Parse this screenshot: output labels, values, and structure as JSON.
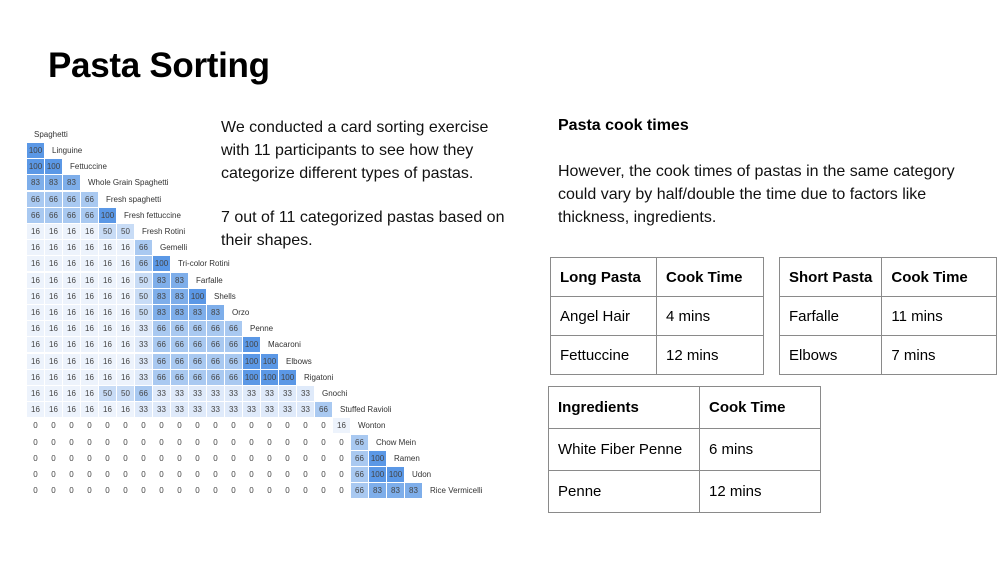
{
  "page": {
    "title": "Pasta Sorting",
    "intro_text": "We conducted a card sorting exercise with 11 participants to see how they categorize different types of pastas.",
    "finding_text": "7 out of 11 categorized pastas based on their shapes."
  },
  "similarity_matrix": {
    "top_label": "Spaghetti",
    "rows": [
      {
        "name": "Linguine",
        "values": [
          100
        ]
      },
      {
        "name": "Fettuccine",
        "values": [
          100,
          100
        ]
      },
      {
        "name": "Whole Grain Spaghetti",
        "values": [
          83,
          83,
          83
        ]
      },
      {
        "name": "Fresh spaghetti",
        "values": [
          66,
          66,
          66,
          66
        ]
      },
      {
        "name": "Fresh fettuccine",
        "values": [
          66,
          66,
          66,
          66,
          100
        ]
      },
      {
        "name": "Fresh Rotini",
        "values": [
          16,
          16,
          16,
          16,
          50,
          50
        ]
      },
      {
        "name": "Gemelli",
        "values": [
          16,
          16,
          16,
          16,
          16,
          16,
          66
        ]
      },
      {
        "name": "Tri-color Rotini",
        "values": [
          16,
          16,
          16,
          16,
          16,
          16,
          66,
          100
        ]
      },
      {
        "name": "Farfalle",
        "values": [
          16,
          16,
          16,
          16,
          16,
          16,
          50,
          83,
          83
        ]
      },
      {
        "name": "Shells",
        "values": [
          16,
          16,
          16,
          16,
          16,
          16,
          50,
          83,
          83,
          100
        ]
      },
      {
        "name": "Orzo",
        "values": [
          16,
          16,
          16,
          16,
          16,
          16,
          50,
          83,
          83,
          83,
          83
        ]
      },
      {
        "name": "Penne",
        "values": [
          16,
          16,
          16,
          16,
          16,
          16,
          33,
          66,
          66,
          66,
          66,
          66
        ]
      },
      {
        "name": "Macaroni",
        "values": [
          16,
          16,
          16,
          16,
          16,
          16,
          33,
          66,
          66,
          66,
          66,
          66,
          100
        ]
      },
      {
        "name": "Elbows",
        "values": [
          16,
          16,
          16,
          16,
          16,
          16,
          33,
          66,
          66,
          66,
          66,
          66,
          100,
          100
        ]
      },
      {
        "name": "Rigatoni",
        "values": [
          16,
          16,
          16,
          16,
          16,
          16,
          33,
          66,
          66,
          66,
          66,
          66,
          100,
          100,
          100
        ]
      },
      {
        "name": "Gnochi",
        "values": [
          16,
          16,
          16,
          16,
          50,
          50,
          66,
          33,
          33,
          33,
          33,
          33,
          33,
          33,
          33,
          33
        ]
      },
      {
        "name": "Stuffed Ravioli",
        "values": [
          16,
          16,
          16,
          16,
          16,
          16,
          33,
          33,
          33,
          33,
          33,
          33,
          33,
          33,
          33,
          33,
          66
        ]
      },
      {
        "name": "Wonton",
        "values": [
          0,
          0,
          0,
          0,
          0,
          0,
          0,
          0,
          0,
          0,
          0,
          0,
          0,
          0,
          0,
          0,
          0,
          16
        ]
      },
      {
        "name": "Chow Mein",
        "values": [
          0,
          0,
          0,
          0,
          0,
          0,
          0,
          0,
          0,
          0,
          0,
          0,
          0,
          0,
          0,
          0,
          0,
          0,
          66
        ]
      },
      {
        "name": "Ramen",
        "values": [
          0,
          0,
          0,
          0,
          0,
          0,
          0,
          0,
          0,
          0,
          0,
          0,
          0,
          0,
          0,
          0,
          0,
          0,
          66,
          100
        ]
      },
      {
        "name": "Udon",
        "values": [
          0,
          0,
          0,
          0,
          0,
          0,
          0,
          0,
          0,
          0,
          0,
          0,
          0,
          0,
          0,
          0,
          0,
          0,
          66,
          100,
          100
        ]
      },
      {
        "name": "Rice Vermicelli",
        "values": [
          0,
          0,
          0,
          0,
          0,
          0,
          0,
          0,
          0,
          0,
          0,
          0,
          0,
          0,
          0,
          0,
          0,
          0,
          66,
          83,
          83,
          83
        ]
      }
    ],
    "colors": {
      "c100": "#5b98e6",
      "c83": "#7eaeea",
      "c66": "#a9c9f1",
      "c50": "#c8dcf6",
      "c33": "#dfeafa",
      "c16": "#edf3fc",
      "c0": "#ffffff"
    }
  },
  "cook_times": {
    "heading": "Pasta cook times",
    "body": "However, the cook times of pastas in the same category could vary by half/double the time due to factors like thickness, ingredients.",
    "long_table": {
      "headers": [
        "Long Pasta",
        "Cook Time"
      ],
      "rows": [
        [
          "Angel Hair",
          "4 mins"
        ],
        [
          "Fettuccine",
          "12 mins"
        ]
      ]
    },
    "short_table": {
      "headers": [
        "Short Pasta",
        "Cook Time"
      ],
      "rows": [
        [
          "Farfalle",
          "11 mins"
        ],
        [
          "Elbows",
          "7 mins"
        ]
      ]
    },
    "ingredients_table": {
      "headers": [
        "Ingredients",
        "Cook Time"
      ],
      "rows": [
        [
          "White Fiber Penne",
          "6 mins"
        ],
        [
          "Penne",
          "12 mins"
        ]
      ]
    }
  }
}
